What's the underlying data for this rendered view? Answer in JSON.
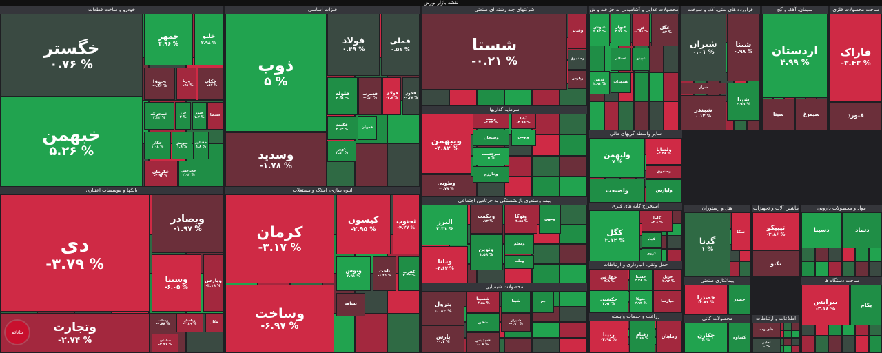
{
  "title": "نقشه بازار بورس",
  "colors": {
    "bg": "#1f1f23",
    "header": "#35363b",
    "strong_up": "#21a34f",
    "up": "#1f8e46",
    "weak_up": "#2f6a44",
    "neutral": "#3a4a42",
    "weak_down": "#6b2f3a",
    "down": "#a3283e",
    "strong_down": "#cf2a45"
  },
  "sectors": [
    {
      "key": "auto",
      "title": "خودرو و ساخت قطعات",
      "tiles": [
        {
          "name": "خگستر",
          "change": "۰.۷۶ %",
          "tone": "neutral"
        },
        {
          "name": "خبهمن",
          "change": "۵.۲۶ %",
          "tone": "strong_up"
        },
        {
          "name": "خمهر",
          "change": "۴.۹۶ %",
          "tone": "strong_up"
        },
        {
          "name": "خلنو",
          "change": "۲.۹۸ %",
          "tone": "strong_up"
        },
        {
          "name": "ختوقا",
          "change": "-۰.۸۷ %",
          "tone": "weak_down"
        },
        {
          "name": "ورنا",
          "change": "-۰.۹۱ %",
          "tone": "down"
        },
        {
          "name": "خکاپ",
          "change": "-۰.۵۷ %",
          "tone": "weak_down"
        },
        {
          "name": "خمحرکه",
          "change": "۲.۳۳ %",
          "tone": "up"
        },
        {
          "name": "خزر",
          "change": "۴ %",
          "tone": "up"
        },
        {
          "name": "ختور",
          "change": "۱.۲ %",
          "tone": "up"
        },
        {
          "name": "خشصا",
          "change": "",
          "tone": "down"
        },
        {
          "name": "خکار",
          "change": "۱.۰۸ %",
          "tone": "up"
        },
        {
          "name": "خپویش",
          "change": "۱.۹ %",
          "tone": "up"
        },
        {
          "name": "خفناور",
          "change": "۱.۸ %",
          "tone": "up"
        },
        {
          "name": "خکرمان",
          "change": "-۲.۹۲ %",
          "tone": "down"
        },
        {
          "name": "خچرخش",
          "change": "۲.۹۳ %",
          "tone": "up"
        }
      ]
    },
    {
      "key": "metals",
      "title": "فلزات اساسی",
      "tiles": [
        {
          "name": "ذوب",
          "change": "۵ %",
          "tone": "strong_up"
        },
        {
          "name": "فولاد",
          "change": "۰.۴۹ %",
          "tone": "neutral"
        },
        {
          "name": "فملی",
          "change": "۰.۵۱ %",
          "tone": "neutral"
        },
        {
          "name": "وسدید",
          "change": "-۱.۷۸ %",
          "tone": "weak_down"
        },
        {
          "name": "فلوله",
          "change": "۲.۵۱ %",
          "tone": "up"
        },
        {
          "name": "فسرب",
          "change": "-۰.۸۳ %",
          "tone": "weak_down"
        },
        {
          "name": "فولای",
          "change": "-۳.۷ %",
          "tone": "strong_down"
        },
        {
          "name": "فخوز",
          "change": "-۰.۲۷ %",
          "tone": "neutral"
        },
        {
          "name": "فکمند",
          "change": "۴.۸۳ %",
          "tone": "up"
        },
        {
          "name": "کویر",
          "change": "۴.۸۳ %",
          "tone": "up"
        },
        {
          "name": "فجهان",
          "change": "",
          "tone": "strong_up"
        }
      ]
    },
    {
      "key": "multi",
      "title": "شرکتهای چند رشته ای صنعتی",
      "tiles": [
        {
          "name": "شستا",
          "change": "-۰.۲۱ %",
          "tone": "weak_down"
        },
        {
          "name": "وغدیر",
          "change": "",
          "tone": "down"
        },
        {
          "name": "وصندوق",
          "change": "",
          "tone": "neutral"
        },
        {
          "name": "وپارس",
          "change": "",
          "tone": "weak_down"
        }
      ]
    },
    {
      "key": "invest",
      "title": "سرمایه گذاریها",
      "tiles": [
        {
          "name": "ویبهمن",
          "change": "-۴.۸۲ %",
          "tone": "strong_down"
        },
        {
          "name": "وبیمه",
          "change": "-۴.۲۴ %",
          "tone": "down"
        },
        {
          "name": "آبادا",
          "change": "-۳.۹۹ %",
          "tone": "down"
        },
        {
          "name": "وسبحان",
          "change": "",
          "tone": "up"
        },
        {
          "name": "وبهمن",
          "change": "",
          "tone": "strong_up"
        },
        {
          "name": "سرچشمه",
          "change": "۵ %",
          "tone": "strong_up"
        },
        {
          "name": "وخارزم",
          "change": "",
          "tone": "up"
        },
        {
          "name": "وطوبی",
          "change": "-۰.۷۸ %",
          "tone": "weak_down"
        }
      ]
    },
    {
      "key": "chem_food",
      "title": "محصولات غذایی و آشامیدنی به جز قند و ش",
      "tiles": [
        {
          "name": "غنوش",
          "change": "۲.۸۲ %",
          "tone": "strong_up"
        },
        {
          "name": "غبهار",
          "change": "۲.۹۷ %",
          "tone": "strong_up"
        },
        {
          "name": "غزر",
          "change": "-۰.۹۱ %",
          "tone": "down"
        },
        {
          "name": "غگل",
          "change": "-۰.۵۳ %",
          "tone": "weak_down"
        },
        {
          "name": "غپینو",
          "change": "",
          "tone": "up"
        },
        {
          "name": "غسالم",
          "change": "",
          "tone": "up"
        },
        {
          "name": "غدیس",
          "change": "۲.۹۱ %",
          "tone": "strong_up"
        },
        {
          "name": "غشهداب",
          "change": "",
          "tone": "up"
        }
      ]
    },
    {
      "key": "refinery",
      "title": "فراورده های نفتی، کک و سوخت",
      "tiles": [
        {
          "name": "شتران",
          "change": "۰.۰۱ %",
          "tone": "neutral"
        },
        {
          "name": "شبنا",
          "change": "۰.۹۸ %",
          "tone": "weak_down"
        },
        {
          "name": "شپنا",
          "change": "۲.۹۵ %",
          "tone": "up"
        },
        {
          "name": "شبندر",
          "change": "۰.۱۲ %",
          "tone": "weak_down"
        },
        {
          "name": "شراز",
          "change": "",
          "tone": "weak_down"
        }
      ]
    },
    {
      "key": "cement",
      "title": "سیمان، آهک و گچ",
      "tiles": [
        {
          "name": "اردستان",
          "change": "۴.۹۹ %",
          "tone": "strong_up"
        },
        {
          "name": "سیتا",
          "change": "",
          "tone": "weak_down"
        },
        {
          "name": "سیمرغ",
          "change": "",
          "tone": "weak_down"
        }
      ]
    },
    {
      "key": "metal_products",
      "title": "ساخت محصولات فلزی",
      "tiles": [
        {
          "name": "فاراک",
          "change": "-۳.۴۳ %",
          "tone": "strong_down"
        },
        {
          "name": "فنورد",
          "change": "",
          "tone": "weak_down"
        }
      ]
    },
    {
      "key": "banks",
      "title": "بانکها و موسسات اعتباری",
      "tiles": [
        {
          "name": "دی",
          "change": "-۳.۷۹ %",
          "tone": "strong_down"
        },
        {
          "name": "وبصادر",
          "change": "-۱.۹۷ %",
          "tone": "weak_down"
        },
        {
          "name": "وسینا",
          "change": "-۶.۰۵ %",
          "tone": "strong_down"
        },
        {
          "name": "وپارس",
          "change": "-۳.۱۹ %",
          "tone": "down"
        },
        {
          "name": "وتجارت",
          "change": "-۲.۷۴ %",
          "tone": "down"
        },
        {
          "name": "وبملت",
          "change": "-۰.۸۸ %",
          "tone": "weak_down"
        },
        {
          "name": "وپاسار",
          "change": "-۲.۸۹ %",
          "tone": "down"
        },
        {
          "name": "وکار",
          "change": "",
          "tone": "down"
        },
        {
          "name": "سامان",
          "change": "-۲.۹۱ %",
          "tone": "down"
        }
      ]
    },
    {
      "key": "realestate",
      "title": "انبوه سازی، املاک و مستغلات",
      "tiles": [
        {
          "name": "کرمان",
          "change": "-۳.۱۷ %",
          "tone": "strong_down"
        },
        {
          "name": "وساخت",
          "change": "-۶.۹۷ %",
          "tone": "strong_down"
        },
        {
          "name": "کیسون",
          "change": "-۲.۹۵ %",
          "tone": "strong_down"
        },
        {
          "name": "ثجنوب",
          "change": "-۴.۲۷ %",
          "tone": "strong_down"
        },
        {
          "name": "وتوس",
          "change": "۲.۹۱ %",
          "tone": "strong_up"
        },
        {
          "name": "ثاخت",
          "change": "-۱.۳۱ %",
          "tone": "weak_down"
        },
        {
          "name": "کفرب",
          "change": "۲.۳۳ %",
          "tone": "up"
        },
        {
          "name": "ثشاهد",
          "change": "",
          "tone": "weak_down"
        }
      ]
    },
    {
      "key": "insurance",
      "title": "بیمه وصندوق بازنشستگی به جزتامین اجتماعی",
      "tiles": [
        {
          "name": "البرز",
          "change": "۳.۳۱ %",
          "tone": "strong_up"
        },
        {
          "name": "وحکمت",
          "change": "-۰.۱۳ %",
          "tone": "weak_down"
        },
        {
          "name": "ودانا",
          "change": "-۳.۶۲ %",
          "tone": "strong_down"
        },
        {
          "name": "وتوکا",
          "change": "-۴.۵۵ %",
          "tone": "down"
        },
        {
          "name": "ومهن",
          "change": "",
          "tone": "up"
        },
        {
          "name": "ونوین",
          "change": "۱.۵۹ %",
          "tone": "up"
        },
        {
          "name": "ومعلم",
          "change": "",
          "tone": "up"
        },
        {
          "name": "وملت",
          "change": "",
          "tone": "up"
        }
      ]
    },
    {
      "key": "chemicals",
      "title": "محصولات شیمیایی",
      "tiles": [
        {
          "name": "پترول",
          "change": "-۰.۸۳ %",
          "tone": "weak_down"
        },
        {
          "name": "شسینا",
          "change": "-۴.۵۸ %",
          "tone": "down"
        },
        {
          "name": "شفن",
          "change": "",
          "tone": "up"
        },
        {
          "name": "شپنا",
          "change": "",
          "tone": "up"
        },
        {
          "name": "پارس",
          "change": "-۰.۱ %",
          "tone": "weak_down"
        },
        {
          "name": "شپدیس",
          "change": "-۰.۸ %",
          "tone": "weak_down"
        },
        {
          "name": "شیراز",
          "change": "-۰.۹۱ %",
          "tone": "weak_down"
        },
        {
          "name": "جم",
          "change": "",
          "tone": "up"
        }
      ]
    },
    {
      "key": "financial",
      "title": "سایر واسطه گریهای مالی",
      "tiles": [
        {
          "name": "ولبهمن",
          "change": "۷ %",
          "tone": "strong_up"
        },
        {
          "name": "ولساپا",
          "change": "-۴.۳۸ %",
          "tone": "strong_down"
        },
        {
          "name": "وصندوق",
          "change": "",
          "tone": "down"
        },
        {
          "name": "ولصنعت",
          "change": "",
          "tone": "up"
        },
        {
          "name": "ولپارس",
          "change": "",
          "tone": "up"
        }
      ]
    },
    {
      "key": "nonmetal",
      "title": "استخراج کانه های فلزی",
      "tiles": [
        {
          "name": "کگل",
          "change": "۳.۱۲ %",
          "tone": "strong_up"
        },
        {
          "name": "کاما",
          "change": "-۴.۸ %",
          "tone": "down"
        },
        {
          "name": "کچاد",
          "change": "",
          "tone": "up"
        },
        {
          "name": "کروی",
          "change": "",
          "tone": "up"
        }
      ]
    },
    {
      "key": "transport",
      "title": "حمل ونقل، انبارداری و ارتباطات",
      "tiles": [
        {
          "name": "حفارس",
          "change": "-۴.۸ %",
          "tone": "down"
        },
        {
          "name": "حسینا",
          "change": "۲.۳۸ %",
          "tone": "up"
        },
        {
          "name": "حکشتی",
          "change": "۲.۹۳ %",
          "tone": "strong_up"
        },
        {
          "name": "حتوکا",
          "change": "۲.۹۳ %",
          "tone": "strong_up"
        },
        {
          "name": "حریل",
          "change": "-۲.۹۲ %",
          "tone": "down"
        },
        {
          "name": "حپارسا",
          "change": "",
          "tone": "down"
        }
      ]
    },
    {
      "key": "farming",
      "title": "زراعت و خدمات وابسته",
      "tiles": [
        {
          "name": "زبینا",
          "change": "-۴.۹۵ %",
          "tone": "strong_down"
        },
        {
          "name": "زقیام",
          "change": "۴.۶۹ %",
          "tone": "up"
        },
        {
          "name": "زماهان",
          "change": "",
          "tone": "down"
        }
      ]
    },
    {
      "key": "hotels",
      "title": "هتل و رستوران",
      "tiles": [
        {
          "name": "گدنا",
          "change": "۱ %",
          "tone": "weak_up"
        },
        {
          "name": "سکا",
          "change": "",
          "tone": "strong_down"
        }
      ]
    },
    {
      "key": "mining",
      "title": "ماشین آلات و تجهیزات",
      "tiles": [
        {
          "name": "تیپیکو",
          "change": "-۳.۸۶ %",
          "tone": "strong_down"
        },
        {
          "name": "تکنو",
          "change": "",
          "tone": "weak_down"
        }
      ]
    },
    {
      "key": "contracting",
      "title": "پیمانکاری صنعتی",
      "tiles": [
        {
          "name": "خصدرا",
          "change": "-۲.۸۶ %",
          "tone": "strong_down"
        },
        {
          "name": "خصدر",
          "change": "",
          "tone": "up"
        }
      ]
    },
    {
      "key": "minerals",
      "title": "محصولات کانی",
      "tiles": [
        {
          "name": "چکارن",
          "change": "۵ %",
          "tone": "strong_up"
        },
        {
          "name": "کساوه",
          "change": "",
          "tone": "up"
        }
      ]
    },
    {
      "key": "it",
      "title": "اطلاعات و ارتباطات",
      "tiles": [
        {
          "name": "های وب",
          "change": "",
          "tone": "weak_down"
        },
        {
          "name": "اخابر",
          "change": "۰ %",
          "tone": "neutral"
        }
      ]
    },
    {
      "key": "devices",
      "title": "ساخت دستگاه ها",
      "tiles": [
        {
          "name": "بترانس",
          "change": "-۳.۱۸ %",
          "tone": "strong_down"
        },
        {
          "name": "بکام",
          "change": "",
          "tone": "up"
        }
      ]
    },
    {
      "key": "pharma",
      "title": "مواد و محصولات دارویی",
      "tiles": [
        {
          "name": "دسینا",
          "change": "",
          "tone": "strong_up"
        },
        {
          "name": "دتماد",
          "change": "",
          "tone": "up"
        }
      ]
    }
  ],
  "watermark": "بتاناتم"
}
